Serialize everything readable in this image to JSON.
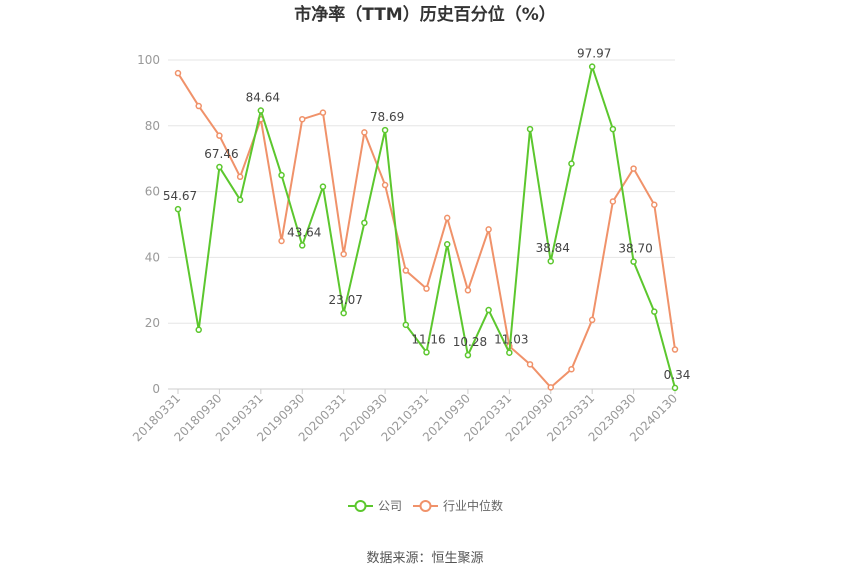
{
  "chart_data": {
    "type": "line",
    "title": "市净率（TTM）历史百分位（%）",
    "source": "数据来源：恒生聚源",
    "ylim": [
      0,
      100
    ],
    "yticks": [
      0,
      20,
      40,
      60,
      80,
      100
    ],
    "x_tick_labels": [
      "20180331",
      "20180930",
      "20190331",
      "20190930",
      "20200331",
      "20200930",
      "20210331",
      "20210930",
      "20220331",
      "20220930",
      "20230331",
      "20230930",
      "20240130"
    ],
    "x_tick_indices": [
      0,
      2,
      4,
      6,
      8,
      10,
      12,
      14,
      16,
      18,
      20,
      22,
      24
    ],
    "grid": true,
    "legend_position": "bottom-center",
    "series": [
      {
        "name": "公司",
        "color": "#5cc72e",
        "values": [
          54.67,
          18,
          67.46,
          57.5,
          84.64,
          65,
          43.64,
          61.5,
          23.07,
          50.5,
          78.69,
          19.5,
          11.16,
          44,
          10.28,
          24,
          11.03,
          79,
          38.84,
          68.5,
          97.97,
          79,
          38.7,
          23.5,
          0.34
        ]
      },
      {
        "name": "行业中位数",
        "color": "#f0926a",
        "values": [
          96,
          86,
          77,
          64.5,
          82,
          45,
          82,
          84,
          41,
          78,
          62,
          36,
          30.5,
          52,
          30,
          48.5,
          13,
          7.5,
          0.5,
          6,
          21,
          57,
          67,
          56,
          12
        ]
      }
    ],
    "data_labels": [
      {
        "series": 0,
        "index": 0,
        "text": "54.67"
      },
      {
        "series": 0,
        "index": 2,
        "text": "67.46"
      },
      {
        "series": 0,
        "index": 4,
        "text": "84.64"
      },
      {
        "series": 0,
        "index": 6,
        "text": "43.64"
      },
      {
        "series": 0,
        "index": 8,
        "text": "23.07"
      },
      {
        "series": 0,
        "index": 10,
        "text": "78.69"
      },
      {
        "series": 0,
        "index": 12,
        "text": "11.16"
      },
      {
        "series": 0,
        "index": 14,
        "text": "10.28"
      },
      {
        "series": 0,
        "index": 16,
        "text": "11.03"
      },
      {
        "series": 0,
        "index": 18,
        "text": "38.84"
      },
      {
        "series": 0,
        "index": 20,
        "text": "97.97"
      },
      {
        "series": 0,
        "index": 22,
        "text": "38.70"
      },
      {
        "series": 0,
        "index": 24,
        "text": "0.34"
      }
    ]
  }
}
